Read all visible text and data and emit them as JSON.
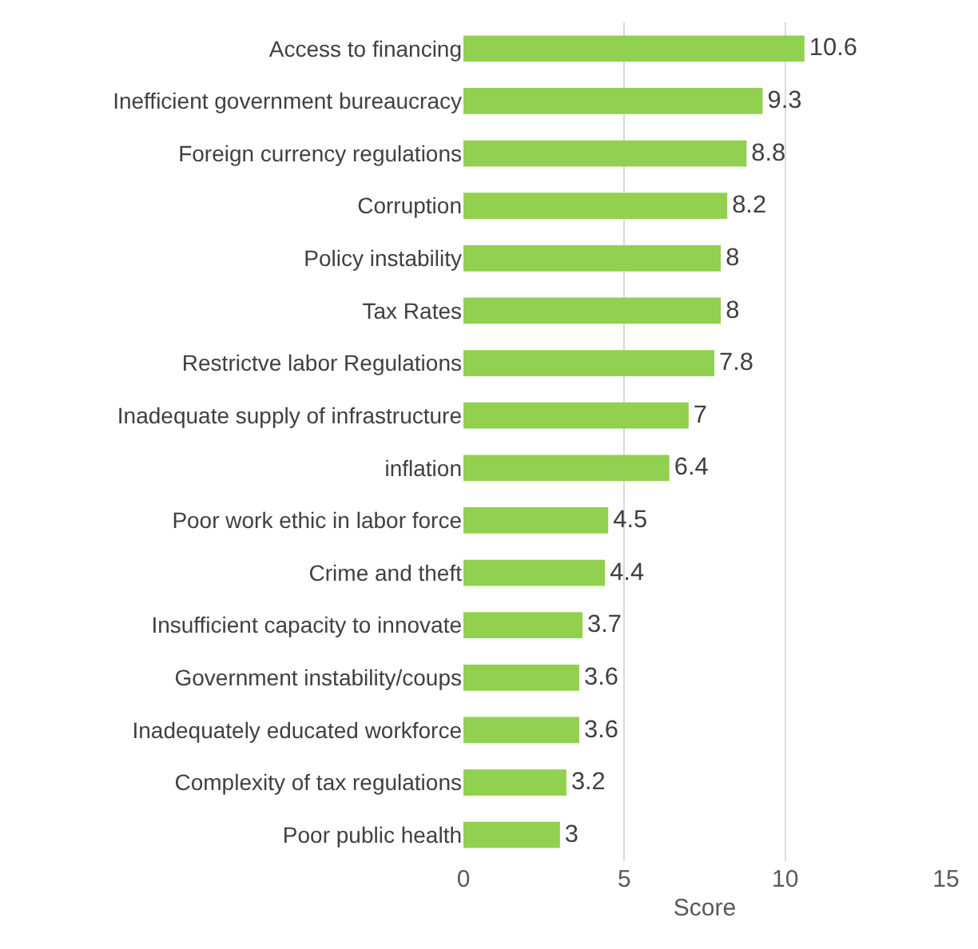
{
  "chart_data": {
    "type": "bar",
    "orientation": "horizontal",
    "xlabel": "Score",
    "categories": [
      "Access to financing",
      "Inefficient government bureaucracy",
      "Foreign currency regulations",
      "Corruption",
      "Policy instability",
      "Tax Rates",
      "Restrictve labor Regulations",
      "Inadequate supply of infrastructure",
      "inflation",
      "Poor work ethic in labor force",
      "Crime and theft",
      "Insufficient capacity to innovate",
      "Government instability/coups",
      "Inadequately educated workforce",
      "Complexity of tax regulations",
      "Poor public health"
    ],
    "values": [
      10.6,
      9.3,
      8.8,
      8.2,
      8,
      8,
      7.8,
      7,
      6.4,
      4.5,
      4.4,
      3.7,
      3.6,
      3.6,
      3.2,
      3
    ],
    "color": "#92d050",
    "xlim": [
      0,
      15
    ],
    "xticks": [
      0,
      5,
      10,
      15
    ],
    "grid": "x",
    "data_labels": true,
    "legend": false
  }
}
